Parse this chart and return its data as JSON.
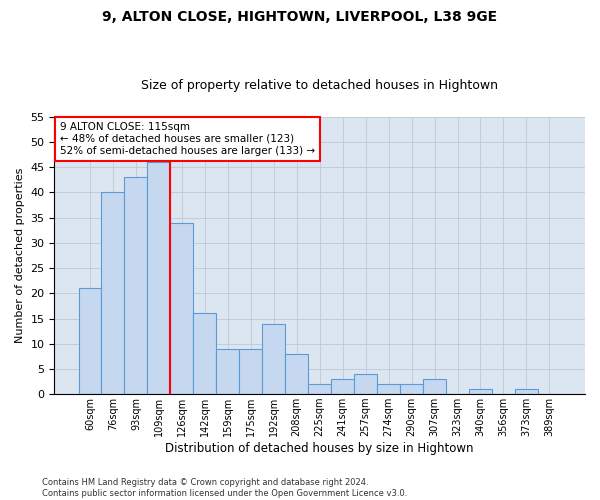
{
  "title1": "9, ALTON CLOSE, HIGHTOWN, LIVERPOOL, L38 9GE",
  "title2": "Size of property relative to detached houses in Hightown",
  "xlabel": "Distribution of detached houses by size in Hightown",
  "ylabel": "Number of detached properties",
  "categories": [
    "60sqm",
    "76sqm",
    "93sqm",
    "109sqm",
    "126sqm",
    "142sqm",
    "159sqm",
    "175sqm",
    "192sqm",
    "208sqm",
    "225sqm",
    "241sqm",
    "257sqm",
    "274sqm",
    "290sqm",
    "307sqm",
    "323sqm",
    "340sqm",
    "356sqm",
    "373sqm",
    "389sqm"
  ],
  "values": [
    21,
    40,
    43,
    46,
    34,
    16,
    9,
    9,
    14,
    8,
    2,
    3,
    4,
    2,
    2,
    3,
    0,
    1,
    0,
    1,
    0
  ],
  "bar_color": "#c5d8f0",
  "bar_edge_color": "#5b9bd5",
  "grid_color": "#c0c8d8",
  "background_color": "#dce6f1",
  "redline_index": 3,
  "annotation_line1": "9 ALTON CLOSE: 115sqm",
  "annotation_line2": "← 48% of detached houses are smaller (123)",
  "annotation_line3": "52% of semi-detached houses are larger (133) →",
  "annotation_box_color": "white",
  "annotation_box_edge": "red",
  "ylim": [
    0,
    55
  ],
  "yticks": [
    0,
    5,
    10,
    15,
    20,
    25,
    30,
    35,
    40,
    45,
    50,
    55
  ],
  "footer": "Contains HM Land Registry data © Crown copyright and database right 2024.\nContains public sector information licensed under the Open Government Licence v3.0."
}
